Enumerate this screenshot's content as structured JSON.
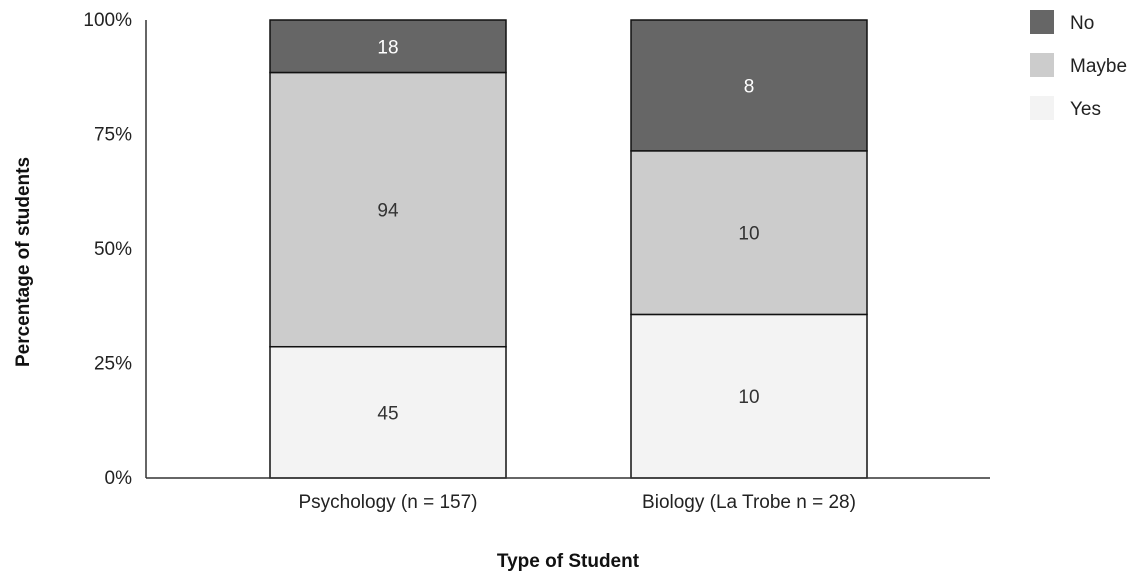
{
  "chart_data": {
    "type": "bar",
    "stacked": true,
    "normalized": true,
    "categories": [
      "Psychology (n = 157)",
      "Biology (La Trobe n = 28)"
    ],
    "series": [
      {
        "name": "Yes",
        "values": [
          45,
          10
        ],
        "color": "#f3f3f3"
      },
      {
        "name": "Maybe",
        "values": [
          94,
          10
        ],
        "color": "#cccccc"
      },
      {
        "name": "No",
        "values": [
          18,
          8
        ],
        "color": "#666666"
      }
    ],
    "legend_order": [
      "No",
      "Maybe",
      "Yes"
    ],
    "legend_position": "top-right",
    "xlabel": "Type of Student",
    "ylabel": "Percentage of students",
    "ylim": [
      0,
      100
    ],
    "yticks": [
      "0%",
      "25%",
      "50%",
      "75%",
      "100%"
    ],
    "grid": false
  }
}
